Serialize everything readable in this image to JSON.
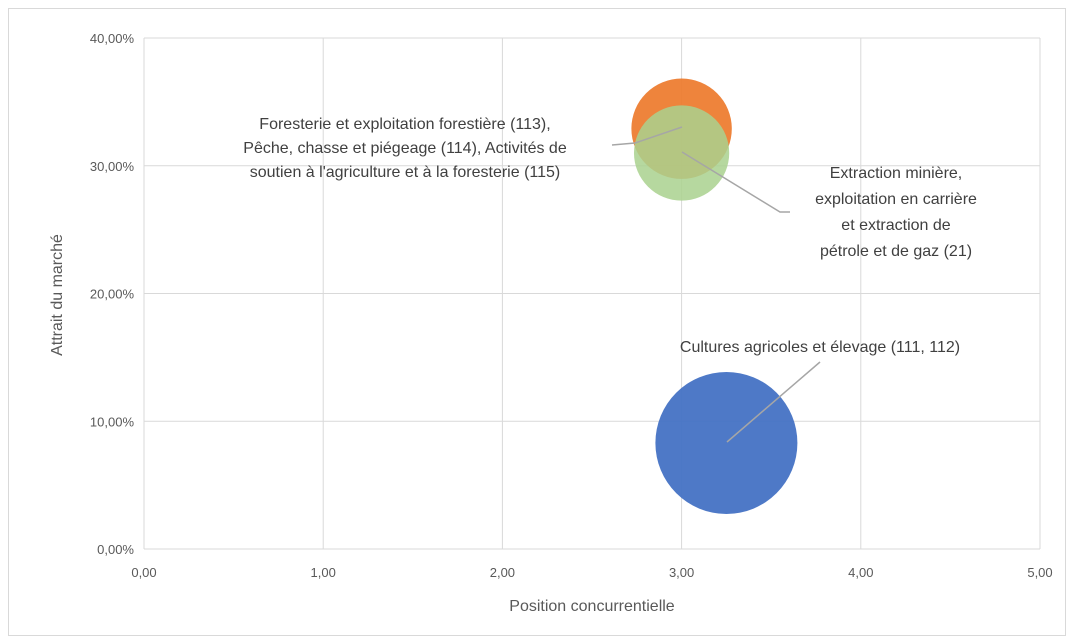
{
  "chart_data": {
    "type": "bubble",
    "xlabel": "Position concurrentielle",
    "ylabel": "Attrait du marché",
    "xlim": [
      0,
      5
    ],
    "ylim": [
      0,
      0.4
    ],
    "x_ticks": [
      "0,00",
      "1,00",
      "2,00",
      "3,00",
      "4,00",
      "5,00"
    ],
    "y_ticks": [
      "0,00%",
      "10,00%",
      "20,00%",
      "30,00%",
      "40,00%"
    ],
    "grid": true,
    "points": [
      {
        "x": 3.25,
        "y": 0.083,
        "size": 1.0,
        "color": "#4472c4",
        "label": [
          "Cultures agricoles et élevage (111, 112)"
        ]
      },
      {
        "x": 3.0,
        "y": 0.329,
        "size": 0.5,
        "color": "#ed7d31",
        "label": [
          "Extraction minière,",
          "exploitation en carrière",
          "et extraction de",
          "pétrole et de gaz (21)"
        ]
      },
      {
        "x": 3.0,
        "y": 0.31,
        "size": 0.45,
        "color": "#a9d18e",
        "label": [
          "Foresterie et exploitation forestière (113),",
          "Pêche, chasse et piégeage (114), Activités de",
          "soutien à l'agriculture et à la foresterie (115)"
        ]
      }
    ]
  }
}
